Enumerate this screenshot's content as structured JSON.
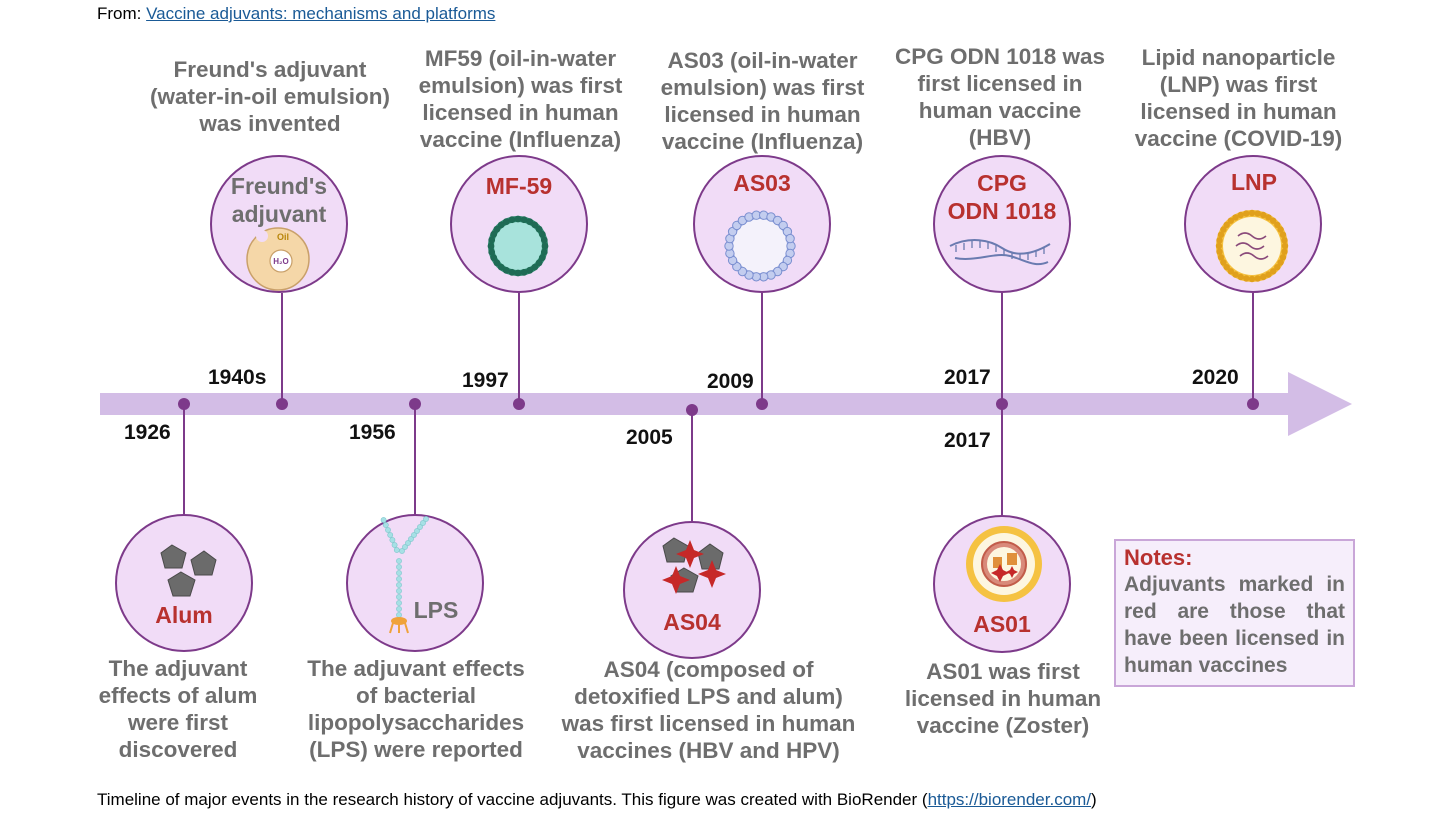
{
  "source": {
    "prefix": "From: ",
    "link_text": "Vaccine adjuvants: mechanisms and platforms"
  },
  "caption": {
    "text": "Timeline of major events in the research history of vaccine adjuvants. This figure was created with BioRender (",
    "link_text": "https://biorender.com/",
    "suffix": ")"
  },
  "colors": {
    "axis": "#d3bde6",
    "line": "#7d3a8a",
    "circle_fill": "#f1dcf7",
    "red": "#b8312f",
    "gray": "#6e6e6e"
  },
  "events_top": [
    {
      "year": "1940s",
      "label_lines": [
        "Freund's",
        "adjuvant"
      ],
      "label_color": "gray",
      "desc_lines": [
        "Freund's adjuvant",
        "(water-in-oil emulsion)",
        "was invented"
      ],
      "icon": "water-in-oil-emulsion-icon",
      "icon_text_oil": "Oil",
      "icon_text_water": "H₂O"
    },
    {
      "year": "1997",
      "label_lines": [
        "MF-59"
      ],
      "label_color": "red",
      "desc_lines": [
        "MF59 (oil-in-water",
        "emulsion) was first",
        "licensed  in human",
        "vaccine (Influenza)"
      ],
      "icon": "oil-in-water-droplet-icon"
    },
    {
      "year": "2009",
      "label_lines": [
        "AS03"
      ],
      "label_color": "red",
      "desc_lines": [
        "AS03  (oil-in-water",
        "emulsion) was first",
        "licensed  in human",
        "vaccine (Influenza)"
      ],
      "icon": "emulsion-droplet-icon"
    },
    {
      "year": "2017",
      "label_lines": [
        "CPG",
        "ODN 1018"
      ],
      "label_color": "red",
      "desc_lines": [
        "CPG ODN 1018 was",
        "first licensed in",
        "human vaccine",
        "(HBV)"
      ],
      "icon": "dna-strand-icon"
    },
    {
      "year": "2020",
      "label_lines": [
        "LNP"
      ],
      "label_color": "red",
      "desc_lines": [
        "Lipid nanoparticle",
        "(LNP) was first",
        "licensed in human",
        "vaccine (COVID-19)"
      ],
      "icon": "lipid-nanoparticle-icon"
    }
  ],
  "events_bottom": [
    {
      "year": "1926",
      "label": "Alum",
      "label_color": "red",
      "desc_lines": [
        "The adjuvant",
        "effects of alum",
        "were first",
        "discovered"
      ],
      "icon": "alum-crystals-icon"
    },
    {
      "year": "1956",
      "label": "LPS",
      "label_color": "gray",
      "desc_lines": [
        "The adjuvant effects",
        "of bacterial",
        "lipopolysaccharides",
        "(LPS) were reported"
      ],
      "icon": "lps-molecule-icon"
    },
    {
      "year": "2005",
      "label": "AS04",
      "label_color": "red",
      "desc_lines": [
        "AS04 (composed of",
        "detoxified LPS and alum)",
        "was first licensed in human",
        "vaccines (HBV and HPV)"
      ],
      "icon": "as04-crystals-icon"
    },
    {
      "year": "2017",
      "label": "AS01",
      "label_color": "red",
      "desc_lines": [
        "AS01 was first",
        "licensed  in human",
        "vaccine (Zoster)"
      ],
      "icon": "liposome-icon"
    }
  ],
  "notes": {
    "title": "Notes:",
    "body": "Adjuvants marked in red are those that have been licensed in human vaccines"
  }
}
